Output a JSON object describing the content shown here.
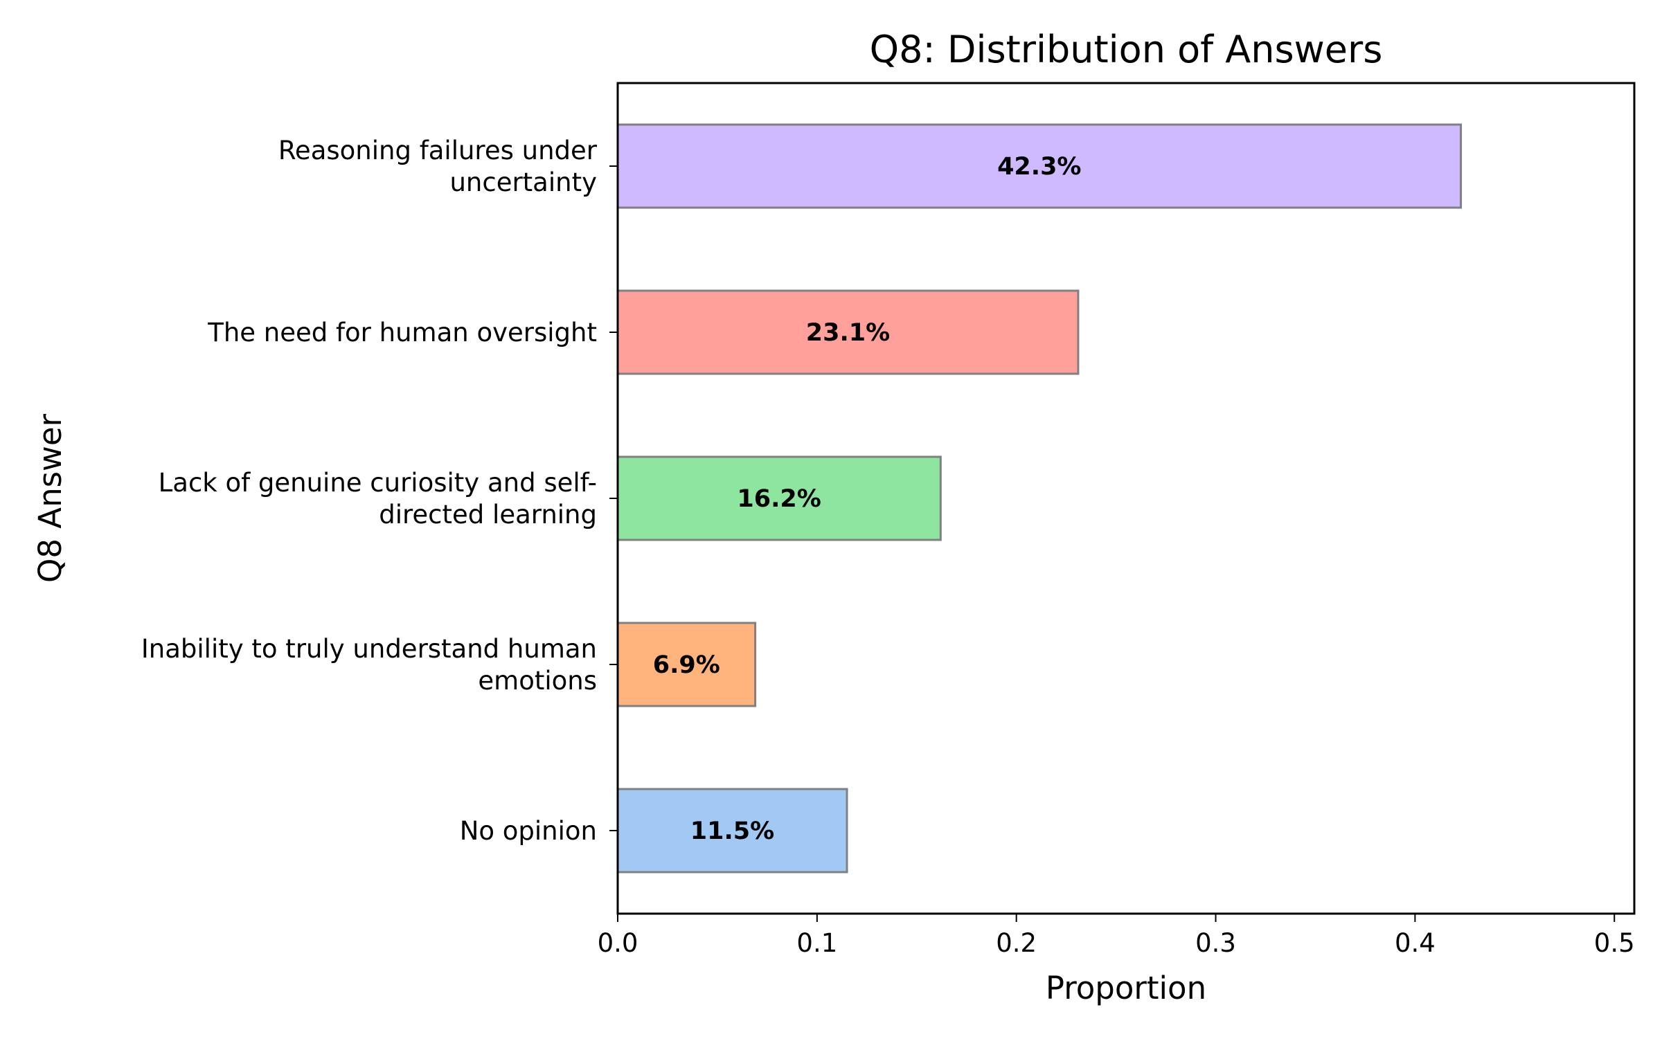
{
  "chart_data": {
    "type": "bar",
    "orientation": "horizontal",
    "title": "Q8: Distribution of Answers",
    "xlabel": "Proportion",
    "ylabel": "Q8 Answer",
    "xlim": [
      0,
      0.51
    ],
    "x_ticks": [
      {
        "value": 0.0,
        "label": "0.0"
      },
      {
        "value": 0.1,
        "label": "0.1"
      },
      {
        "value": 0.2,
        "label": "0.2"
      },
      {
        "value": 0.3,
        "label": "0.3"
      },
      {
        "value": 0.4,
        "label": "0.4"
      },
      {
        "value": 0.5,
        "label": "0.5"
      }
    ],
    "grid": false,
    "legend": "none",
    "bars": [
      {
        "label": [
          "Reasoning failures under",
          "uncertainty"
        ],
        "value": 0.423,
        "value_label": "42.3%",
        "color": "#cfbaff"
      },
      {
        "label": [
          "The need for human oversight"
        ],
        "value": 0.231,
        "value_label": "23.1%",
        "color": "#ffa09b"
      },
      {
        "label": [
          "Lack of genuine curiosity and self-",
          "directed learning"
        ],
        "value": 0.162,
        "value_label": "16.2%",
        "color": "#8ee59f"
      },
      {
        "label": [
          "Inability to truly understand human",
          "emotions"
        ],
        "value": 0.069,
        "value_label": "6.9%",
        "color": "#ffb47e"
      },
      {
        "label": [
          "No opinion"
        ],
        "value": 0.115,
        "value_label": "11.5%",
        "color": "#a2c8f4"
      }
    ],
    "bar_edge_color": "#808080"
  }
}
